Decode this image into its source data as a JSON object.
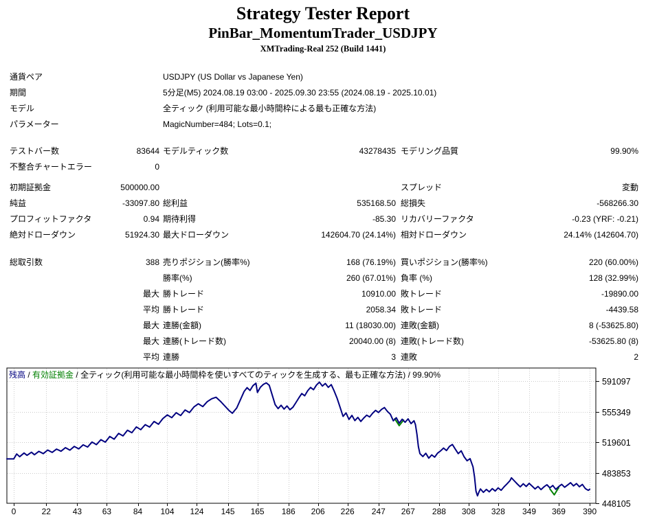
{
  "header": {
    "title": "Strategy Tester Report",
    "subtitle": "PinBar_MomentumTrader_USDJPY",
    "server": "XMTrading-Real 252 (Build 1441)"
  },
  "info_rows": [
    {
      "label": "通貨ペア",
      "value": "USDJPY (US Dollar vs Japanese Yen)"
    },
    {
      "label": "期間",
      "value": "5分足(M5) 2024.08.19 03:00 - 2025.09.30 23:55 (2024.08.19 - 2025.10.01)"
    },
    {
      "label": "モデル",
      "value": "全ティック (利用可能な最小時間枠による最も正確な方法)"
    },
    {
      "label": "パラメーター",
      "value": "MagicNumber=484; Lots=0.1;"
    }
  ],
  "stats_model": [
    {
      "c1": "テストバー数",
      "c2": "83644",
      "c3": "モデルティック数",
      "c4": "43278435",
      "c5": "モデリング品質",
      "c6": "99.90%"
    },
    {
      "c1": "不整合チャートエラー",
      "c2": "0",
      "c3": "",
      "c4": "",
      "c5": "",
      "c6": ""
    }
  ],
  "stats_results": [
    {
      "c1": "初期証拠金",
      "c2": "500000.00",
      "c3": "",
      "c4": "",
      "c5": "スプレッド",
      "c6": "変動"
    },
    {
      "c1": "純益",
      "c2": "-33097.80",
      "c3": "総利益",
      "c4": "535168.50",
      "c5": "総損失",
      "c6": "-568266.30"
    },
    {
      "c1": "プロフィットファクタ",
      "c2": "0.94",
      "c3": "期待利得",
      "c4": "-85.30",
      "c5": "リカバリーファクタ",
      "c6": "-0.23 (YRF: -0.21)"
    },
    {
      "c1": "絶対ドローダウン",
      "c2": "51924.30",
      "c3": "最大ドローダウン",
      "c4": "142604.70 (24.14%)",
      "c5": "相対ドローダウン",
      "c6": "24.14% (142604.70)"
    }
  ],
  "stats_trades": [
    {
      "c1": "総取引数",
      "c2": "388",
      "c3": "売りポジション(勝率%)",
      "c4": "168 (76.19%)",
      "c5": "買いポジション(勝率%)",
      "c6": "220 (60.00%)"
    },
    {
      "c1": "",
      "c2": "",
      "c3": "勝率(%)",
      "c4": "260 (67.01%)",
      "c5": "負率 (%)",
      "c6": "128 (32.99%)"
    },
    {
      "c1": "",
      "c2": "最大",
      "c3": "勝トレード",
      "c4": "10910.00",
      "c5": "敗トレード",
      "c6": "-19890.00"
    },
    {
      "c1": "",
      "c2": "平均",
      "c3": "勝トレード",
      "c4": "2058.34",
      "c5": "敗トレード",
      "c6": "-4439.58"
    },
    {
      "c1": "",
      "c2": "最大",
      "c3": "連勝(金額)",
      "c4": "11 (18030.00)",
      "c5": "連敗(金額)",
      "c6": "8 (-53625.80)"
    },
    {
      "c1": "",
      "c2": "最大",
      "c3": "連勝(トレード数)",
      "c4": "20040.00 (8)",
      "c5": "連敗(トレード数)",
      "c6": "-53625.80 (8)"
    },
    {
      "c1": "",
      "c2": "平均",
      "c3": "連勝",
      "c4": "3",
      "c5": "連敗",
      "c6": "2"
    }
  ],
  "legend": {
    "balance": "残高",
    "sep1": " / ",
    "equity": "有効証拠金",
    "sep2": " / ",
    "model": "全ティック(利用可能な最小時間枠を使いすべてのティックを生成する、最も正確な方法) / 99.90%"
  },
  "chart_data": {
    "type": "line",
    "title": "残高 / 有効証拠金",
    "x_ticks": [
      0,
      22,
      43,
      63,
      84,
      104,
      124,
      145,
      165,
      186,
      206,
      226,
      247,
      267,
      288,
      308,
      328,
      349,
      369,
      390
    ],
    "y_ticks": [
      448105,
      483853,
      519601,
      555349,
      591097
    ],
    "ylim": [
      448105,
      606000
    ],
    "xlim": [
      0,
      394
    ],
    "grid": "dotted",
    "colors": {
      "balance": "#000080",
      "equity": "#008000",
      "grid": "#c9c9c9",
      "axis": "#000000"
    },
    "series": [
      {
        "name": "残高",
        "color": "#000080",
        "segments": [
          [
            [
              0,
              500000
            ],
            [
              2,
              505800
            ],
            [
              4,
              502600
            ],
            [
              7,
              506900
            ],
            [
              9,
              504200
            ],
            [
              12,
              507800
            ],
            [
              14,
              504900
            ],
            [
              17,
              508800
            ],
            [
              20,
              506200
            ],
            [
              23,
              510400
            ],
            [
              26,
              507600
            ],
            [
              29,
              511500
            ],
            [
              32,
              509000
            ],
            [
              35,
              513200
            ],
            [
              38,
              510300
            ],
            [
              41,
              514600
            ],
            [
              44,
              511800
            ],
            [
              47,
              516500
            ],
            [
              50,
              513900
            ],
            [
              53,
              519800
            ],
            [
              56,
              516700
            ],
            [
              59,
              522500
            ],
            [
              62,
              519600
            ],
            [
              65,
              526300
            ],
            [
              68,
              523100
            ],
            [
              71,
              529800
            ],
            [
              74,
              526900
            ],
            [
              77,
              533600
            ],
            [
              80,
              530700
            ],
            [
              83,
              537400
            ],
            [
              86,
              534200
            ],
            [
              89,
              540100
            ],
            [
              92,
              537300
            ],
            [
              95,
              543800
            ],
            [
              98,
              540600
            ],
            [
              101,
              547200
            ],
            [
              104,
              551500
            ],
            [
              107,
              548300
            ],
            [
              110,
              554100
            ],
            [
              113,
              550800
            ],
            [
              116,
              557300
            ],
            [
              119,
              554200
            ],
            [
              122,
              560800
            ],
            [
              125,
              564500
            ],
            [
              128,
              561200
            ],
            [
              131,
              566900
            ],
            [
              134,
              570400
            ],
            [
              137,
              572100
            ],
            [
              140,
              567300
            ],
            [
              143,
              561800
            ],
            [
              146,
              556200
            ],
            [
              148,
              553400
            ],
            [
              151,
              559700
            ],
            [
              154,
              571200
            ],
            [
              156,
              578900
            ],
            [
              158,
              583400
            ],
            [
              160,
              580100
            ],
            [
              162,
              585700
            ],
            [
              164,
              588600
            ],
            [
              165,
              577800
            ],
            [
              167,
              583900
            ],
            [
              169,
              587200
            ],
            [
              171,
              589000
            ],
            [
              173,
              586100
            ],
            [
              175,
              574800
            ],
            [
              177,
              563500
            ],
            [
              179,
              558900
            ],
            [
              181,
              562700
            ],
            [
              183,
              558300
            ],
            [
              185,
              561900
            ],
            [
              187,
              557600
            ],
            [
              189,
              560400
            ],
            [
              191,
              565800
            ],
            [
              193,
              571300
            ],
            [
              195,
              576500
            ],
            [
              197,
              573900
            ],
            [
              199,
              579800
            ],
            [
              201,
              583600
            ],
            [
              203,
              581000
            ],
            [
              205,
              586400
            ],
            [
              207,
              589800
            ],
            [
              209,
              585200
            ],
            [
              211,
              588300
            ],
            [
              213,
              583700
            ],
            [
              215,
              586900
            ],
            [
              217,
              579400
            ],
            [
              219,
              570800
            ],
            [
              221,
              560300
            ],
            [
              223,
              549700
            ],
            [
              225,
              553800
            ],
            [
              227,
              546200
            ],
            [
              229,
              550900
            ],
            [
              231,
              544800
            ],
            [
              233,
              548600
            ],
            [
              235,
              543900
            ],
            [
              237,
              547800
            ],
            [
              239,
              551200
            ],
            [
              241,
              549100
            ],
            [
              243,
              553400
            ],
            [
              245,
              556800
            ],
            [
              247,
              554300
            ],
            [
              249,
              557900
            ],
            [
              251,
              560100
            ],
            [
              253,
              555600
            ],
            [
              255,
              552300
            ],
            [
              257,
              544600
            ],
            [
              259,
              548200
            ],
            [
              261,
              541800
            ],
            [
              263,
              546400
            ],
            [
              265,
              542900
            ],
            [
              267,
              546800
            ],
            [
              269,
              541300
            ],
            [
              271,
              544700
            ],
            [
              272,
              540200
            ],
            [
              273,
              528800
            ],
            [
              274,
              514400
            ],
            [
              275,
              506200
            ],
            [
              277,
              502800
            ],
            [
              279,
              506600
            ],
            [
              281,
              500900
            ],
            [
              283,
              504700
            ],
            [
              285,
              502100
            ],
            [
              287,
              506800
            ],
            [
              289,
              509400
            ],
            [
              291,
              512700
            ],
            [
              293,
              509800
            ],
            [
              295,
              514600
            ],
            [
              297,
              516900
            ],
            [
              299,
              511300
            ],
            [
              301,
              506200
            ],
            [
              303,
              509500
            ],
            [
              305,
              502400
            ],
            [
              307,
              497800
            ],
            [
              309,
              500300
            ],
            [
              311,
              490600
            ],
            [
              312,
              478900
            ],
            [
              313,
              462300
            ],
            [
              314,
              456800
            ],
            [
              315,
              461200
            ],
            [
              316,
              464800
            ],
            [
              318,
              460900
            ],
            [
              320,
              464300
            ],
            [
              322,
              461500
            ],
            [
              324,
              465200
            ],
            [
              326,
              462400
            ],
            [
              328,
              466100
            ],
            [
              330,
              463300
            ],
            [
              332,
              467400
            ],
            [
              334,
              470800
            ],
            [
              336,
              474600
            ],
            [
              337,
              477900
            ],
            [
              339,
              474200
            ],
            [
              341,
              470600
            ],
            [
              343,
              467300
            ],
            [
              345,
              470900
            ],
            [
              347,
              467800
            ],
            [
              349,
              471400
            ],
            [
              351,
              468200
            ],
            [
              353,
              464900
            ],
            [
              355,
              467800
            ],
            [
              357,
              464100
            ],
            [
              359,
              467300
            ],
            [
              361,
              469800
            ],
            [
              363,
              466200
            ],
            [
              365,
              468900
            ],
            [
              367,
              464400
            ],
            [
              369,
              467600
            ],
            [
              371,
              470300
            ],
            [
              373,
              466800
            ],
            [
              375,
              469500
            ],
            [
              377,
              472100
            ],
            [
              379,
              468400
            ],
            [
              381,
              471200
            ],
            [
              383,
              467500
            ],
            [
              385,
              470100
            ],
            [
              387,
              465300
            ],
            [
              389,
              463200
            ],
            [
              390,
              464500
            ]
          ]
        ]
      },
      {
        "name": "有効証拠金",
        "color": "#008000",
        "segments": [
          [
            [
              258,
              547000
            ],
            [
              261,
              539000
            ],
            [
              264,
              545500
            ]
          ],
          [
            [
              363,
              465000
            ],
            [
              366,
              458000
            ],
            [
              369,
              466500
            ]
          ]
        ]
      }
    ]
  }
}
